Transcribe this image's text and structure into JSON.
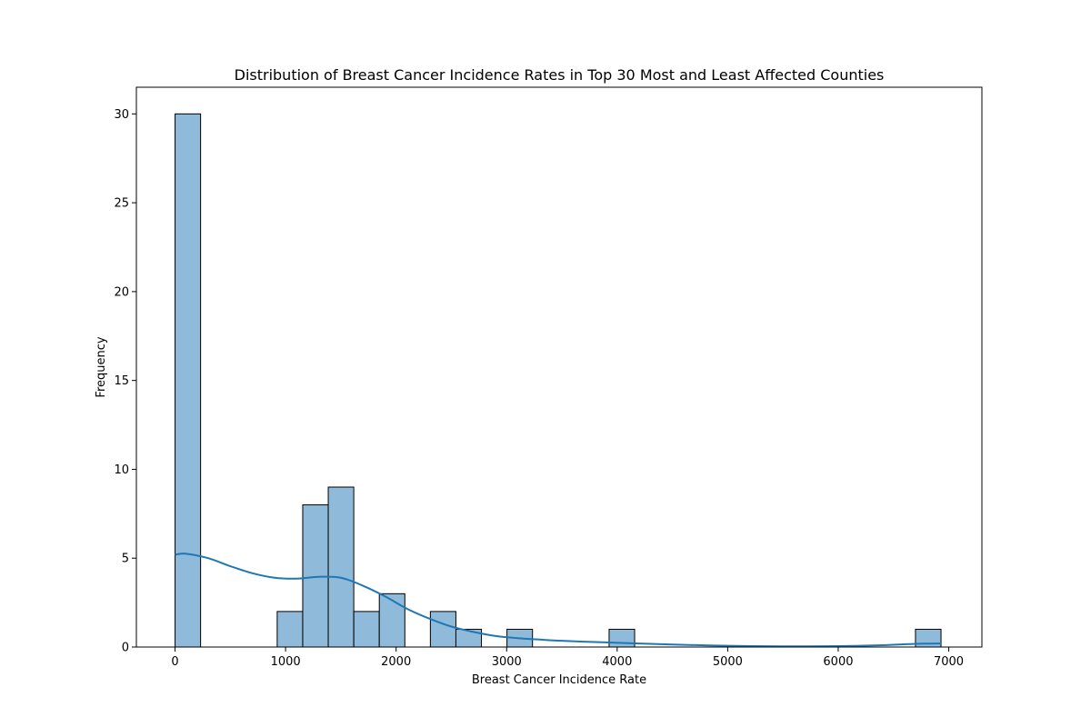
{
  "chart_data": {
    "type": "bar",
    "subtype": "histogram",
    "title": "Distribution of Breast Cancer Incidence Rates in Top 30 Most and Least Affected Counties",
    "xlabel": "Breast Cancer Incidence Rate",
    "ylabel": "Frequency",
    "xlim": [
      -350,
      7300
    ],
    "ylim": [
      0,
      31.5
    ],
    "grid": false,
    "legend": "none",
    "bar_color": "#8fbad9",
    "bar_edge_color": "#000000",
    "kde_color": "#1f77b4",
    "bins": [
      {
        "start": 0,
        "end": 231,
        "count": 30
      },
      {
        "start": 924,
        "end": 1155,
        "count": 2
      },
      {
        "start": 1155,
        "end": 1386,
        "count": 8
      },
      {
        "start": 1386,
        "end": 1617,
        "count": 9
      },
      {
        "start": 1617,
        "end": 1848,
        "count": 2
      },
      {
        "start": 1848,
        "end": 2079,
        "count": 3
      },
      {
        "start": 2310,
        "end": 2541,
        "count": 2
      },
      {
        "start": 2541,
        "end": 2772,
        "count": 1
      },
      {
        "start": 3003,
        "end": 3234,
        "count": 1
      },
      {
        "start": 3927,
        "end": 4158,
        "count": 1
      },
      {
        "start": 6699,
        "end": 6930,
        "count": 1
      }
    ],
    "kde": {
      "x": [
        0,
        100,
        300,
        500,
        700,
        900,
        1100,
        1300,
        1500,
        1700,
        1900,
        2100,
        2300,
        2500,
        2700,
        2900,
        3100,
        3300,
        3500,
        3800,
        4100,
        4500,
        5000,
        5500,
        6000,
        6400,
        6700,
        6930
      ],
      "y": [
        5.2,
        5.25,
        5.0,
        4.55,
        4.15,
        3.9,
        3.85,
        3.95,
        3.9,
        3.45,
        2.85,
        2.15,
        1.6,
        1.15,
        0.85,
        0.62,
        0.5,
        0.42,
        0.35,
        0.28,
        0.22,
        0.14,
        0.07,
        0.04,
        0.05,
        0.1,
        0.18,
        0.2
      ]
    },
    "x_ticks": [
      0,
      1000,
      2000,
      3000,
      4000,
      5000,
      6000,
      7000
    ],
    "y_ticks": [
      0,
      5,
      10,
      15,
      20,
      25,
      30
    ],
    "x_tick_labels": [
      "0",
      "1000",
      "2000",
      "3000",
      "4000",
      "5000",
      "6000",
      "7000"
    ],
    "y_tick_labels": [
      "0",
      "5",
      "10",
      "15",
      "20",
      "25",
      "30"
    ]
  }
}
